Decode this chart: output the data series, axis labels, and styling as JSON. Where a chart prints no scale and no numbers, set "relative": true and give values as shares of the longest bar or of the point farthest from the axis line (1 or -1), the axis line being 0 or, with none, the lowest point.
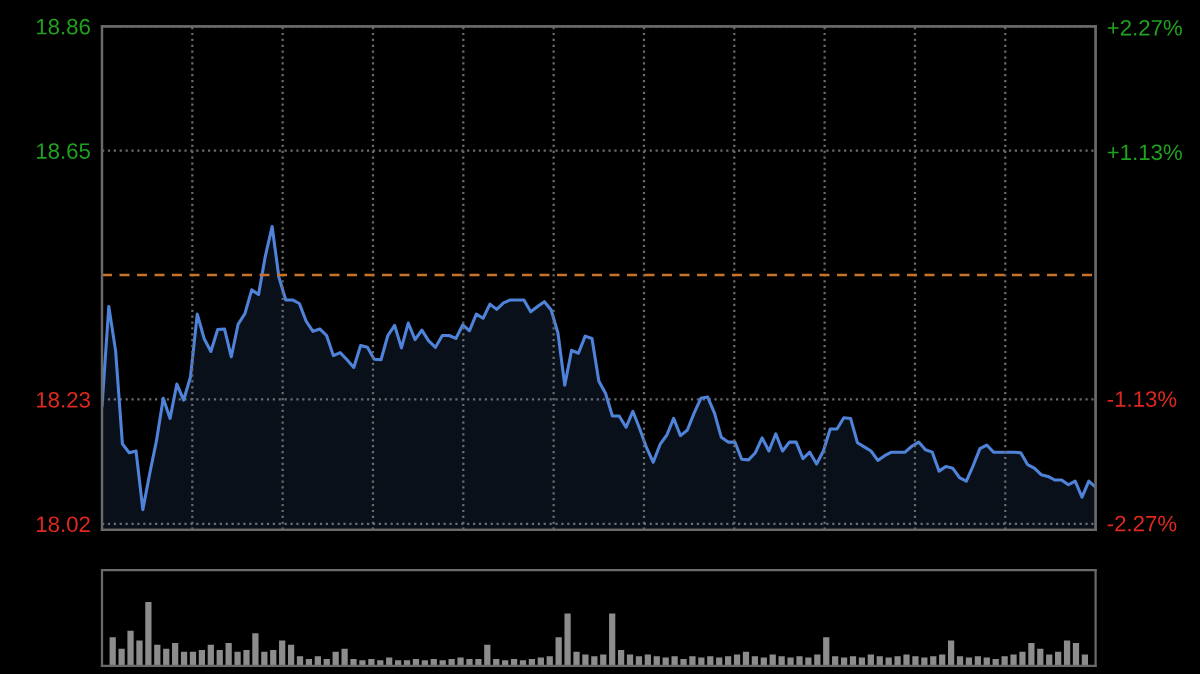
{
  "chart_data": [
    {
      "type": "area",
      "categories": [
        null,
        null,
        null,
        null,
        null,
        null,
        null,
        null,
        null,
        null,
        null,
        null,
        null,
        null,
        null,
        null,
        null,
        null,
        null,
        null,
        null,
        null,
        null,
        null,
        null,
        null,
        null,
        null,
        null,
        null,
        null,
        null,
        null,
        null,
        null,
        null,
        null,
        null,
        null,
        null,
        null,
        null,
        null,
        null,
        null,
        null,
        null,
        null,
        null,
        null,
        null,
        null,
        null,
        null,
        null,
        null,
        null,
        null,
        null,
        null,
        null,
        null,
        null,
        null,
        null,
        null,
        null,
        null,
        null,
        null,
        null,
        null,
        null,
        null,
        null,
        null,
        null,
        null,
        null,
        null,
        null,
        null,
        null,
        null,
        null,
        null,
        null,
        null,
        null,
        null,
        null,
        null,
        null,
        null,
        null,
        null,
        null,
        null,
        null,
        null,
        null,
        null,
        null,
        null,
        null,
        null,
        null,
        null,
        null,
        null,
        null,
        null,
        null,
        null,
        null,
        null,
        null,
        null,
        null,
        null,
        null,
        null,
        null,
        null,
        null,
        null,
        null,
        null,
        null,
        null,
        null,
        null,
        null,
        null,
        null,
        null,
        null,
        null,
        null,
        null,
        null,
        null,
        null,
        null,
        null,
        null,
        null
      ],
      "series": [
        {
          "color": "#4f83d9",
          "values": [
            18.218,
            18.387,
            18.312,
            18.155,
            18.14,
            18.143,
            18.044,
            18.104,
            18.16,
            18.232,
            18.198,
            18.256,
            18.229,
            18.268,
            18.374,
            18.333,
            18.311,
            18.348,
            18.349,
            18.302,
            18.357,
            18.375,
            18.415,
            18.407,
            18.472,
            18.522,
            18.436,
            18.398,
            18.398,
            18.392,
            18.362,
            18.345,
            18.349,
            18.338,
            18.304,
            18.309,
            18.297,
            18.284,
            18.321,
            18.318,
            18.298,
            18.297,
            18.338,
            18.355,
            18.317,
            18.359,
            18.331,
            18.347,
            18.329,
            18.318,
            18.338,
            18.338,
            18.333,
            18.356,
            18.346,
            18.374,
            18.367,
            18.391,
            18.382,
            18.393,
            18.398,
            18.398,
            18.398,
            18.378,
            18.387,
            18.395,
            18.381,
            18.342,
            18.254,
            18.313,
            18.308,
            18.337,
            18.333,
            18.261,
            18.24,
            18.202,
            18.202,
            18.183,
            18.21,
            18.181,
            18.149,
            18.124,
            18.154,
            18.17,
            18.198,
            18.169,
            18.178,
            18.207,
            18.232,
            18.234,
            18.207,
            18.166,
            18.158,
            18.158,
            18.129,
            18.128,
            18.14,
            18.165,
            18.143,
            18.172,
            18.143,
            18.158,
            18.158,
            18.13,
            18.141,
            18.121,
            18.143,
            18.18,
            18.18,
            18.199,
            18.198,
            18.157,
            18.15,
            18.143,
            18.127,
            18.135,
            18.141,
            18.141,
            18.141,
            18.151,
            18.158,
            18.145,
            18.141,
            18.109,
            18.117,
            18.114,
            18.098,
            18.092,
            18.118,
            18.147,
            18.153,
            18.141,
            18.141,
            18.141,
            18.141,
            18.14,
            18.12,
            18.114,
            18.103,
            18.1,
            18.094,
            18.094,
            18.086,
            18.092,
            18.065,
            18.092,
            18.082
          ]
        }
      ],
      "ylim": [
        18.01,
        18.86
      ],
      "yticks": [
        18.02,
        18.23,
        18.65,
        18.86
      ],
      "y2lim": [
        -2.33,
        2.28
      ],
      "y2ticks": [
        {
          "value": -2.27,
          "label": "-2.27%"
        },
        {
          "value": -1.13,
          "label": "-1.13%"
        },
        {
          "value": 1.13,
          "label": "+1.13%"
        },
        {
          "value": 2.27,
          "label": "+2.27%"
        }
      ],
      "ref_lines": [
        {
          "axis": "y",
          "value": 18.44,
          "color": "#c8732a",
          "line_style": "dashed"
        }
      ],
      "grid": true,
      "tick_labels": "y"
    },
    {
      "type": "bar",
      "categories": [
        null,
        null,
        null,
        null,
        null,
        null,
        null,
        null,
        null,
        null,
        null,
        null,
        null,
        null,
        null,
        null,
        null,
        null,
        null,
        null,
        null,
        null,
        null,
        null,
        null,
        null,
        null,
        null,
        null,
        null,
        null,
        null,
        null,
        null,
        null,
        null,
        null,
        null,
        null,
        null,
        null,
        null,
        null,
        null,
        null,
        null,
        null,
        null,
        null,
        null,
        null,
        null,
        null,
        null,
        null,
        null,
        null,
        null,
        null,
        null,
        null,
        null,
        null,
        null,
        null,
        null,
        null,
        null,
        null,
        null,
        null,
        null,
        null,
        null,
        null,
        null,
        null,
        null,
        null,
        null,
        null,
        null,
        null,
        null,
        null,
        null,
        null,
        null,
        null,
        null,
        null,
        null,
        null,
        null,
        null,
        null,
        null,
        null,
        null,
        null,
        null,
        null,
        null,
        null,
        null,
        null,
        null,
        null,
        null,
        null
      ],
      "values": [
        0.45,
        0.27,
        0.55,
        0.4,
        1,
        0.33,
        0.27,
        0.36,
        0.22,
        0.22,
        0.25,
        0.33,
        0.25,
        0.36,
        0.22,
        0.25,
        0.51,
        0.22,
        0.25,
        0.4,
        0.33,
        0.15,
        0.11,
        0.15,
        0.11,
        0.22,
        0.27,
        0.11,
        0.09,
        0.11,
        0.09,
        0.13,
        0.09,
        0.09,
        0.11,
        0.09,
        0.11,
        0.09,
        0.11,
        0.13,
        0.11,
        0.11,
        0.33,
        0.11,
        0.09,
        0.11,
        0.09,
        0.11,
        0.13,
        0.15,
        0.45,
        0.82,
        0.22,
        0.18,
        0.15,
        0.18,
        0.82,
        0.25,
        0.18,
        0.15,
        0.18,
        0.15,
        0.13,
        0.15,
        0.11,
        0.15,
        0.13,
        0.15,
        0.13,
        0.15,
        0.18,
        0.22,
        0.15,
        0.13,
        0.18,
        0.15,
        0.13,
        0.15,
        0.13,
        0.18,
        0.45,
        0.15,
        0.13,
        0.15,
        0.13,
        0.18,
        0.15,
        0.13,
        0.15,
        0.18,
        0.15,
        0.13,
        0.15,
        0.18,
        0.4,
        0.15,
        0.13,
        0.15,
        0.13,
        0.11,
        0.15,
        0.18,
        0.22,
        0.36,
        0.27,
        0.18,
        0.22,
        0.4,
        0.36,
        0.18
      ],
      "color": "#8c8c8c",
      "relative": true
    }
  ]
}
